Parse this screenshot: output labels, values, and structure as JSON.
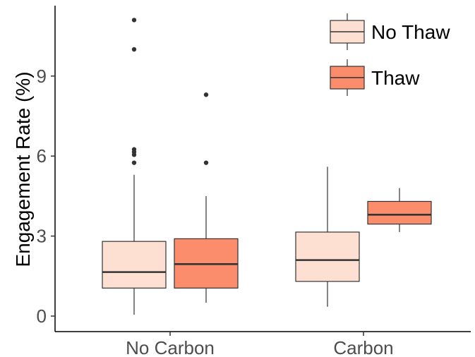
{
  "chart_data": {
    "type": "boxplot",
    "title": "",
    "xlabel": "",
    "ylabel": "Engagement Rate (%)",
    "ylim": [
      -0.5,
      11.5
    ],
    "yticks": [
      0,
      3,
      6,
      9
    ],
    "grid": false,
    "legend_position": "top-right",
    "categories": [
      "No Carbon",
      "Carbon"
    ],
    "series": [
      {
        "name": "No Thaw",
        "color": "#fde0d1",
        "boxes": [
          {
            "category": "No Carbon",
            "min": 0.05,
            "q1": 1.05,
            "median": 1.65,
            "q3": 2.8,
            "max": 5.3,
            "outliers": [
              5.75,
              6.05,
              6.15,
              6.25,
              10.0,
              11.1
            ]
          },
          {
            "category": "Carbon",
            "min": 0.35,
            "q1": 1.3,
            "median": 2.1,
            "q3": 3.15,
            "max": 5.6,
            "outliers": []
          }
        ]
      },
      {
        "name": "Thaw",
        "color": "#fb8d6c",
        "boxes": [
          {
            "category": "No Carbon",
            "min": 0.5,
            "q1": 1.05,
            "median": 1.95,
            "q3": 2.9,
            "max": 4.5,
            "outliers": [
              5.75,
              8.3
            ]
          },
          {
            "category": "Carbon",
            "min": 3.15,
            "q1": 3.45,
            "median": 3.8,
            "q3": 4.3,
            "max": 4.8,
            "outliers": []
          }
        ]
      }
    ]
  }
}
